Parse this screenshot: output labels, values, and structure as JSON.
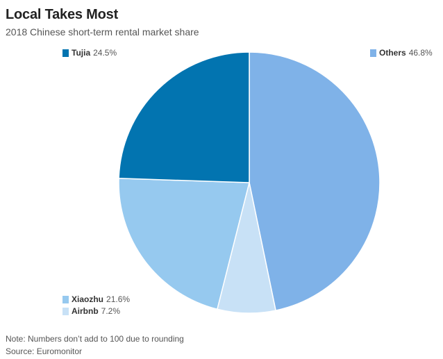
{
  "header": {
    "title": "Local Takes Most",
    "subtitle": "2018 Chinese short-term rental market share"
  },
  "chart_data": {
    "type": "pie",
    "title": "Local Takes Most",
    "subtitle": "2018 Chinese short-term rental market share",
    "unit": "%",
    "start_angle_deg": 0,
    "direction": "clockwise",
    "slices": [
      {
        "label": "Others",
        "value": 46.8,
        "display": "46.8%",
        "color": "#7fb2e8"
      },
      {
        "label": "Airbnb",
        "value": 7.2,
        "display": "7.2%",
        "color": "#c8e1f6"
      },
      {
        "label": "Xiaozhu",
        "value": 21.6,
        "display": "21.6%",
        "color": "#96c9ef"
      },
      {
        "label": "Tujia",
        "value": 24.5,
        "display": "24.5%",
        "color": "#0274b0"
      }
    ],
    "legend": {
      "Tujia": {
        "name": "Tujia",
        "value": "24.5%"
      },
      "Others": {
        "name": "Others",
        "value": "46.8%"
      },
      "Xiaozhu": {
        "name": "Xiaozhu",
        "value": "21.6%"
      },
      "Airbnb": {
        "name": "Airbnb",
        "value": "7.2%"
      }
    }
  },
  "footer": {
    "note": "Note: Numbers don’t add to 100 due to rounding",
    "source": "Source: Euromonitor"
  }
}
